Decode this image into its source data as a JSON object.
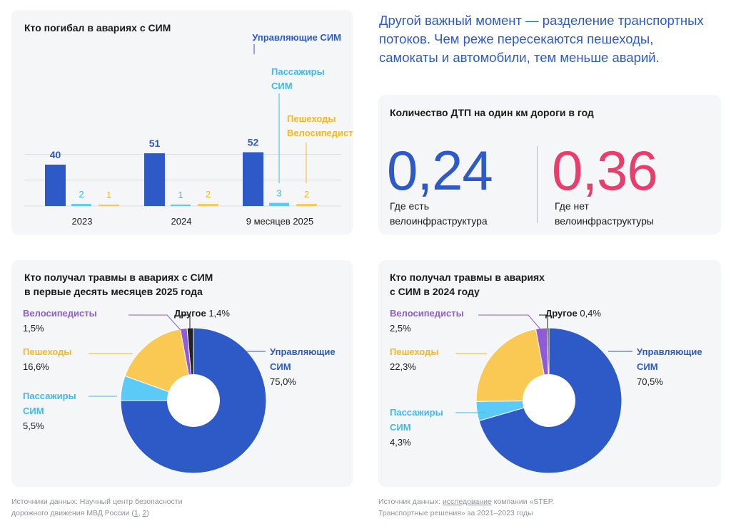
{
  "intro_text": "Другой важный момент — разделение транспортных потоков. Чем реже пересекаются пешеходы, самокаты и автомобили, тем меньше аварий.",
  "colors": {
    "drivers": "#2d5ac7",
    "passengers": "#5ccaf6",
    "pedestrians": "#f9c954",
    "cyclists": "#8f5bd6",
    "other": "#222222",
    "accent_red": "#e83e6b"
  },
  "stat_card": {
    "title": "Количество ДТП на один км дороги в год",
    "with_infra": {
      "value": "0,24",
      "caption_line1": "Где есть",
      "caption_line2": "велоинфраструктура"
    },
    "without_infra": {
      "value": "0,36",
      "caption_line1": "Где нет",
      "caption_line2": "велоинфраструктуры"
    }
  },
  "chart_data": [
    {
      "type": "bar",
      "title": "Кто погибал в авариях с СИМ",
      "categories": [
        "2023",
        "2024",
        "9 месяцев 2025"
      ],
      "series": [
        {
          "name": "Управляющие СИМ",
          "values": [
            40,
            51,
            52
          ],
          "labels": [
            "40",
            "51",
            "52"
          ]
        },
        {
          "name": "Пассажиры СИМ",
          "values": [
            2,
            1,
            3
          ],
          "labels": [
            "2",
            "1",
            "3"
          ]
        },
        {
          "name": "Пешеходы Велосипедисты",
          "values": [
            1,
            2,
            2
          ],
          "labels": [
            "1",
            "2",
            "2"
          ]
        }
      ],
      "legend": {
        "drivers": "Управляющие СИМ",
        "passengers_line1": "Пассажиры",
        "passengers_line2": "СИМ",
        "pedestrians_line1": "Пешеходы",
        "pedestrians_line2": "Велосипедисты"
      },
      "ylim": [
        0,
        60
      ],
      "grid": true
    },
    {
      "type": "pie",
      "title_line1": "Кто получал травмы в авариях с СИМ",
      "title_line2": "в первые десять месяцев 2025 года",
      "slices": [
        {
          "key": "drivers",
          "name_line1": "Управляющие",
          "name_line2": "СИМ",
          "value": 75.0,
          "label": "75,0%"
        },
        {
          "key": "passengers",
          "name_line1": "Пассажиры",
          "name_line2": "СИМ",
          "value": 5.5,
          "label": "5,5%"
        },
        {
          "key": "pedestrians",
          "name_line1": "Пешеходы",
          "value": 16.6,
          "label": "16,6%"
        },
        {
          "key": "cyclists",
          "name_line1": "Велосипедисты",
          "value": 1.5,
          "label": "1,5%"
        },
        {
          "key": "other",
          "name_line1": "Другое",
          "value": 1.4,
          "label": "1,4%"
        }
      ]
    },
    {
      "type": "pie",
      "title_line1": "Кто получал травмы в авариях",
      "title_line2": "с СИМ в 2024 году",
      "slices": [
        {
          "key": "drivers",
          "name_line1": "Управляющие",
          "name_line2": "СИМ",
          "value": 70.5,
          "label": "70,5%"
        },
        {
          "key": "passengers",
          "name_line1": "Пассажиры",
          "name_line2": "СИМ",
          "value": 4.3,
          "label": "4,3%"
        },
        {
          "key": "pedestrians",
          "name_line1": "Пешеходы",
          "value": 22.3,
          "label": "22,3%"
        },
        {
          "key": "cyclists",
          "name_line1": "Велосипедисты",
          "value": 2.5,
          "label": "2,5%"
        },
        {
          "key": "other",
          "name_line1": "Другое",
          "value": 0.4,
          "label": "0,4%"
        }
      ]
    }
  ],
  "sources": {
    "left_line1": "Источники данных: Научный центр безопасности",
    "left_line2_prefix": "дорожного движения МВД России (",
    "left_link1": "1",
    "left_sep": ", ",
    "left_link2": "2",
    "left_suffix": ")",
    "right_prefix": "Источник данных: ",
    "right_link": "исследование",
    "right_line1_rest": " компании «STEP.",
    "right_line2": "Транспортные решения» за 2021–2023 годы"
  }
}
